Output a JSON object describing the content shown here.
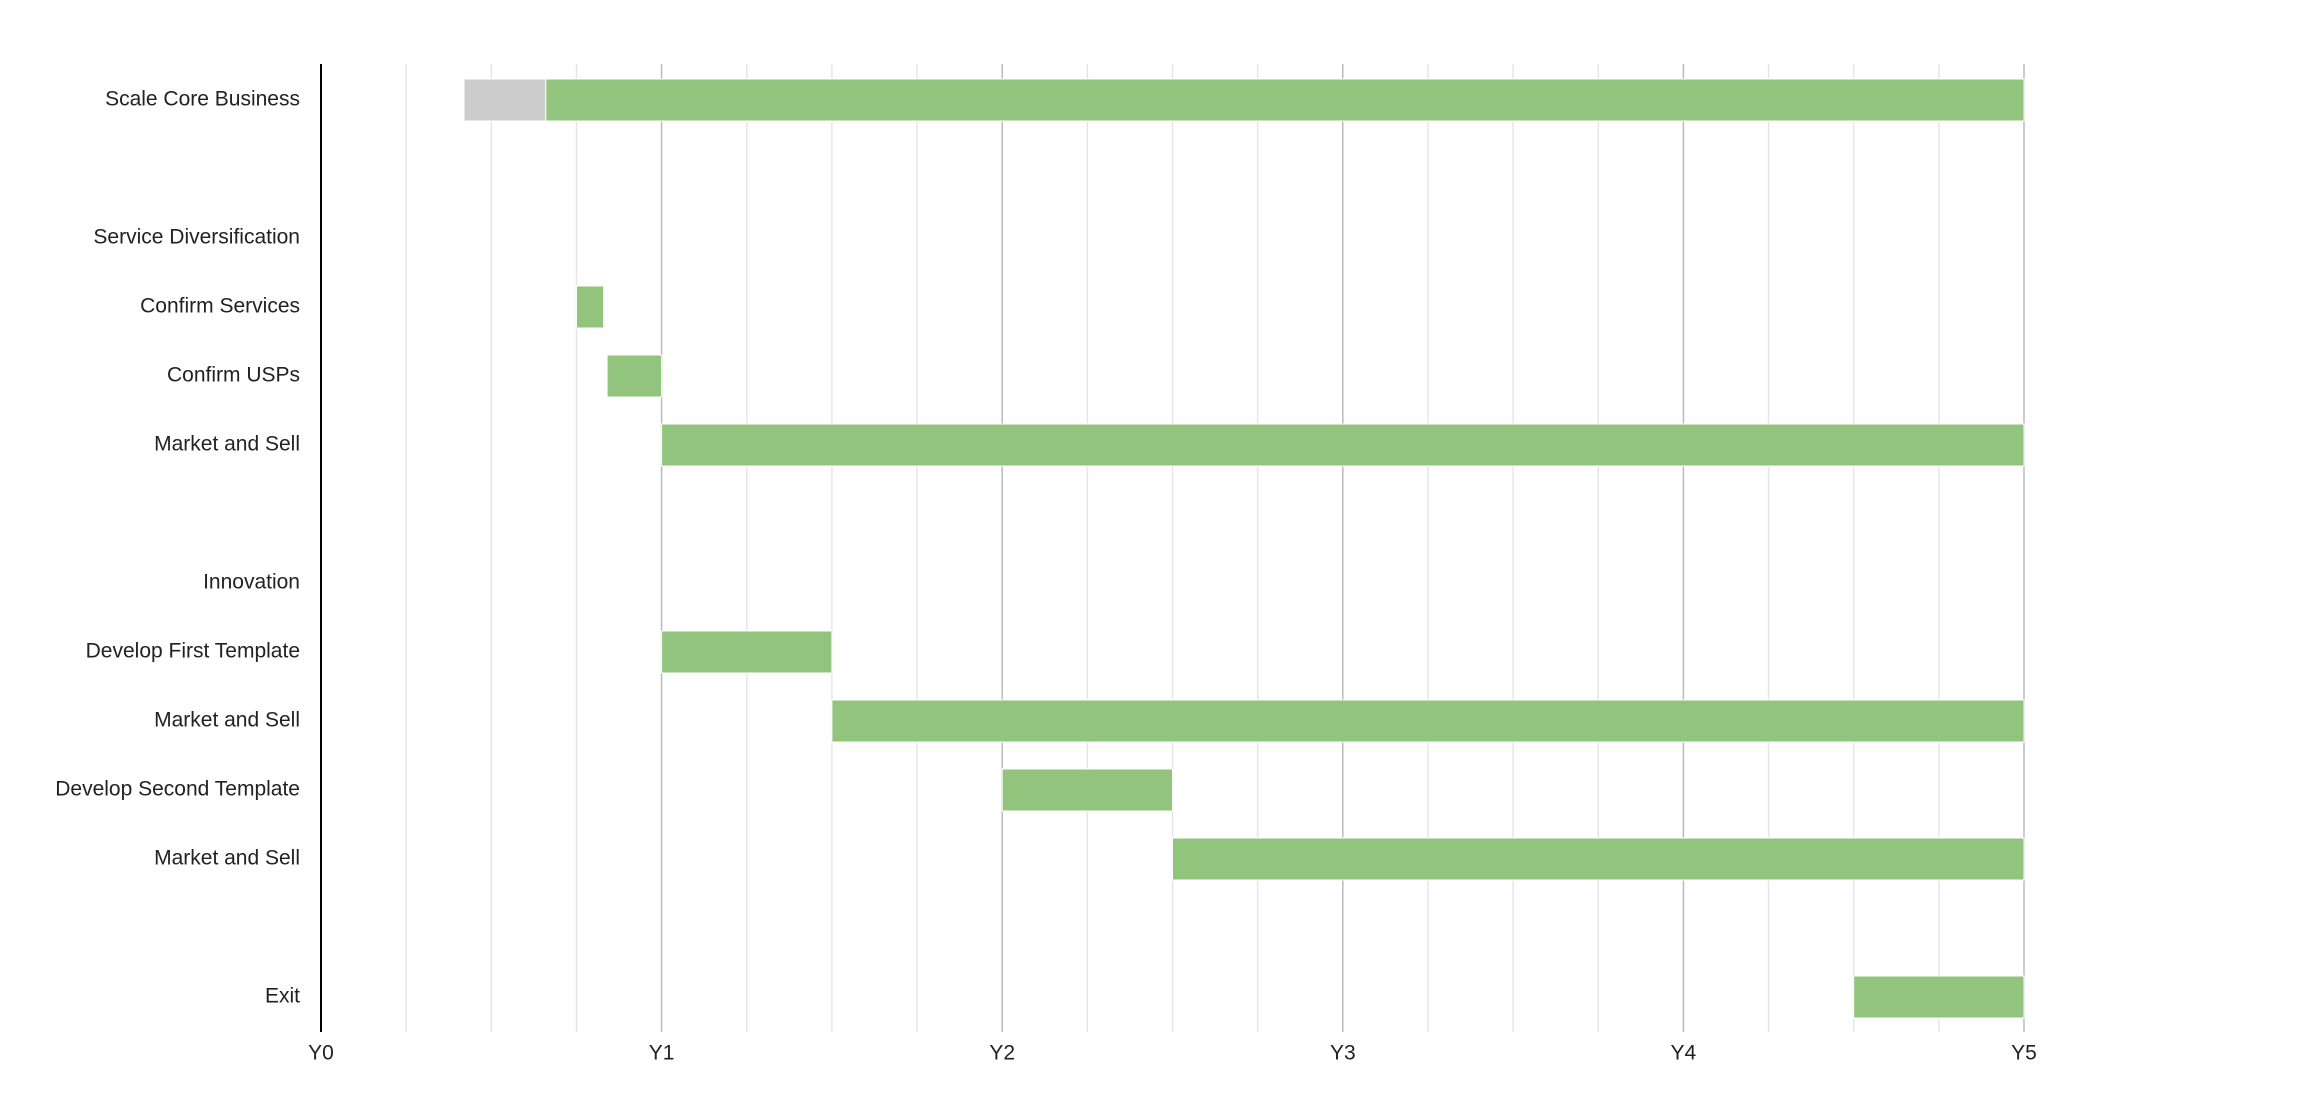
{
  "chart_data": {
    "type": "gantt",
    "categories": [
      "Scale Core Business",
      null,
      "Service Diversification",
      "Confirm Services",
      "Confirm USPs",
      "Market and Sell",
      null,
      "Innovation",
      "Develop First Template",
      "Market and Sell",
      "Develop Second Template",
      "Market and Sell",
      null,
      "Exit"
    ],
    "tasks": [
      [
        {
          "start": 0.42,
          "end": 0.66,
          "color": "#cccccc"
        },
        {
          "start": 0.66,
          "end": 5,
          "color": "#93c47d"
        }
      ],
      [],
      [],
      [
        {
          "start": 0.75,
          "end": 0.83,
          "color": "#93c47d"
        }
      ],
      [
        {
          "start": 0.84,
          "end": 1,
          "color": "#93c47d"
        }
      ],
      [
        {
          "start": 1,
          "end": 5,
          "color": "#93c47d"
        }
      ],
      [],
      [],
      [
        {
          "start": 1,
          "end": 1.5,
          "color": "#93c47d"
        }
      ],
      [
        {
          "start": 1.5,
          "end": 5,
          "color": "#93c47d"
        }
      ],
      [
        {
          "start": 2,
          "end": 2.5,
          "color": "#93c47d"
        }
      ],
      [
        {
          "start": 2.5,
          "end": 5,
          "color": "#93c47d"
        }
      ],
      [],
      [
        {
          "start": 4.5,
          "end": 5,
          "color": "#93c47d"
        }
      ]
    ],
    "xlim": [
      0,
      5
    ],
    "xticks": [
      {
        "value": 0,
        "label": "Y0"
      },
      {
        "value": 1,
        "label": "Y1"
      },
      {
        "value": 2,
        "label": "Y2"
      },
      {
        "value": 3,
        "label": "Y3"
      },
      {
        "value": 4,
        "label": "Y4"
      },
      {
        "value": 5,
        "label": "Y5"
      }
    ],
    "minor_xticks": [
      0.25,
      0.5,
      0.75,
      1.25,
      1.5,
      1.75,
      2.25,
      2.5,
      2.75,
      3.25,
      3.5,
      3.75,
      4.25,
      4.5,
      4.75
    ],
    "grid": true
  }
}
